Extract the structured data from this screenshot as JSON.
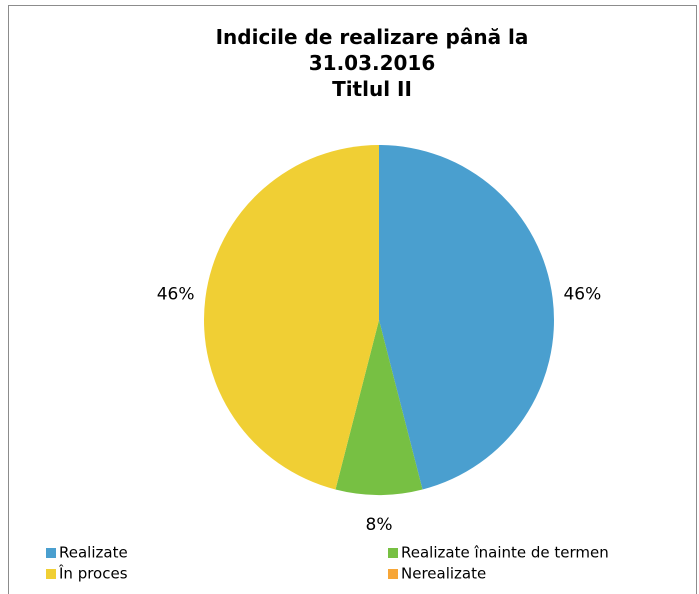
{
  "chart_data": {
    "type": "pie",
    "title": [
      "Indicile de realizare până la",
      "31.03.2016",
      "Titlul II"
    ],
    "categories": [
      "Realizate",
      "Realizate înainte de termen",
      "În proces",
      "Nerealizate"
    ],
    "values": [
      46,
      8,
      46,
      0
    ],
    "value_labels": [
      "46%",
      "8%",
      "46%",
      null
    ],
    "colors": [
      "#4a9fcf",
      "#77c043",
      "#f0cf34",
      "#f7a637"
    ]
  }
}
